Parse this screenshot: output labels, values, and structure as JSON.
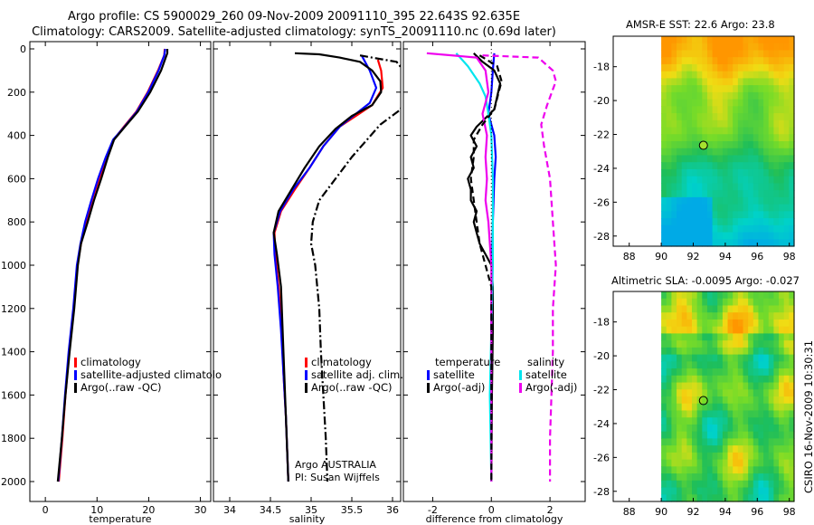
{
  "figure": {
    "title_line1": "Argo profile: CS 5900029_260 09-Nov-2009 20091110_395 22.643S 92.635E",
    "title_line2": "Climatology: CARS2009. Satellite-adjusted climatology: synTS_20091110.nc (0.69d later)",
    "stamp": "CSIRO 16-Nov-2009 10:30:31"
  },
  "colors": {
    "climatology": "#ff0000",
    "satellite": "#0000ff",
    "argo": "#000000",
    "sat_salinity": "#00e5ee",
    "argo_salinity": "#ee00ee"
  },
  "chart_data": [
    {
      "type": "line",
      "name": "temperature-profile",
      "xlabel": "temperature",
      "ylabel": "",
      "xlim": [
        -3,
        32
      ],
      "ylim": [
        2050,
        0
      ],
      "y_reversed": true,
      "xticks": [
        0,
        10,
        20,
        30
      ],
      "yticks": [
        0,
        200,
        400,
        600,
        800,
        1000,
        1200,
        1400,
        1600,
        1800,
        2000
      ],
      "legend": [
        "climatology",
        "satellite-adjusted climatolo",
        "Argo(..raw -QC)"
      ],
      "series": [
        {
          "name": "climatology",
          "color": "#ff0000",
          "dash": "solid",
          "points": [
            [
              23.1,
              0
            ],
            [
              23.0,
              30
            ],
            [
              21.8,
              100
            ],
            [
              19.8,
              200
            ],
            [
              17.6,
              290
            ],
            [
              15.2,
              360
            ],
            [
              13.2,
              420
            ],
            [
              11.9,
              500
            ],
            [
              10.4,
              600
            ],
            [
              9.0,
              700
            ],
            [
              7.9,
              800
            ],
            [
              6.9,
              900
            ],
            [
              6.2,
              1000
            ],
            [
              5.5,
              1200
            ],
            [
              4.6,
              1400
            ],
            [
              3.9,
              1600
            ],
            [
              3.3,
              1800
            ],
            [
              2.6,
              2000
            ]
          ]
        },
        {
          "name": "satellite-adjusted climatolo",
          "color": "#0000ff",
          "dash": "solid",
          "points": [
            [
              23.2,
              0
            ],
            [
              23.0,
              30
            ],
            [
              21.9,
              100
            ],
            [
              19.9,
              200
            ],
            [
              17.7,
              290
            ],
            [
              15.3,
              360
            ],
            [
              13.1,
              420
            ],
            [
              11.7,
              500
            ],
            [
              10.2,
              600
            ],
            [
              8.9,
              700
            ],
            [
              7.7,
              800
            ],
            [
              6.8,
              900
            ],
            [
              6.1,
              1000
            ],
            [
              5.4,
              1200
            ],
            [
              4.5,
              1400
            ],
            [
              3.8,
              1600
            ],
            [
              3.2,
              1800
            ],
            [
              2.5,
              2000
            ]
          ]
        },
        {
          "name": "Argo(..raw -QC)",
          "color": "#000000",
          "dash": "solid",
          "points": [
            [
              23.6,
              0
            ],
            [
              23.6,
              20
            ],
            [
              22.4,
              100
            ],
            [
              20.3,
              200
            ],
            [
              17.9,
              290
            ],
            [
              15.4,
              360
            ],
            [
              13.3,
              420
            ],
            [
              12.1,
              500
            ],
            [
              10.8,
              600
            ],
            [
              9.4,
              700
            ],
            [
              8.2,
              800
            ],
            [
              6.9,
              900
            ],
            [
              6.3,
              1000
            ],
            [
              5.6,
              1200
            ],
            [
              4.7,
              1400
            ],
            [
              3.9,
              1600
            ],
            [
              3.2,
              1800
            ],
            [
              2.4,
              2000
            ]
          ]
        }
      ]
    },
    {
      "type": "line",
      "name": "salinity-profile",
      "xlabel": "salinity",
      "ylabel": "",
      "xlim": [
        33.8,
        36.1
      ],
      "ylim": [
        2050,
        0
      ],
      "y_reversed": true,
      "xticks": [
        34,
        34.5,
        35,
        35.5,
        36
      ],
      "legend": [
        "climatology",
        "satellite adj. clim.",
        "Argo(..raw -QC)"
      ],
      "annotation_line1": "Argo AUSTRALIA",
      "annotation_line2": "PI: Susan Wijffels",
      "series": [
        {
          "name": "climatology",
          "color": "#ff0000",
          "dash": "solid",
          "points": [
            [
              35.82,
              50
            ],
            [
              35.86,
              100
            ],
            [
              35.88,
              180
            ],
            [
              35.75,
              260
            ],
            [
              35.55,
              310
            ],
            [
              35.35,
              360
            ],
            [
              35.15,
              450
            ],
            [
              34.98,
              550
            ],
            [
              34.8,
              650
            ],
            [
              34.63,
              750
            ],
            [
              34.55,
              850
            ],
            [
              34.56,
              950
            ],
            [
              34.6,
              1100
            ],
            [
              34.64,
              1300
            ],
            [
              34.66,
              1500
            ],
            [
              34.69,
              1700
            ],
            [
              34.72,
              2000
            ]
          ]
        },
        {
          "name": "satellite adj. clim.",
          "color": "#0000ff",
          "dash": "solid",
          "points": [
            [
              35.62,
              30
            ],
            [
              35.72,
              100
            ],
            [
              35.8,
              180
            ],
            [
              35.72,
              250
            ],
            [
              35.55,
              300
            ],
            [
              35.35,
              360
            ],
            [
              35.15,
              450
            ],
            [
              34.98,
              550
            ],
            [
              34.78,
              650
            ],
            [
              34.62,
              750
            ],
            [
              34.54,
              850
            ],
            [
              34.55,
              950
            ],
            [
              34.59,
              1100
            ],
            [
              34.63,
              1300
            ],
            [
              34.66,
              1500
            ],
            [
              34.69,
              1700
            ],
            [
              34.72,
              2000
            ]
          ]
        },
        {
          "name": "Argo(..raw -QC)",
          "color": "#000000",
          "dash": "solid",
          "points": [
            [
              34.8,
              20
            ],
            [
              35.1,
              25
            ],
            [
              35.35,
              40
            ],
            [
              35.6,
              60
            ],
            [
              35.75,
              100
            ],
            [
              35.85,
              150
            ],
            [
              35.86,
              200
            ],
            [
              35.75,
              260
            ],
            [
              35.5,
              310
            ],
            [
              35.3,
              370
            ],
            [
              35.1,
              450
            ],
            [
              34.92,
              550
            ],
            [
              34.76,
              650
            ],
            [
              34.6,
              750
            ],
            [
              34.54,
              850
            ],
            [
              34.58,
              950
            ],
            [
              34.63,
              1100
            ],
            [
              34.65,
              1300
            ],
            [
              34.67,
              1500
            ],
            [
              34.7,
              1800
            ],
            [
              34.72,
              2000
            ]
          ]
        },
        {
          "name": "Argo raw",
          "color": "#000000",
          "dash": "dashdot",
          "points": [
            [
              35.6,
              30
            ],
            [
              35.9,
              50
            ],
            [
              36.05,
              60
            ],
            [
              36.2,
              130
            ],
            [
              36.1,
              280
            ],
            [
              35.85,
              350
            ],
            [
              35.5,
              500
            ],
            [
              35.3,
              600
            ],
            [
              35.1,
              700
            ],
            [
              35.02,
              800
            ],
            [
              35.0,
              900
            ],
            [
              35.05,
              1000
            ],
            [
              35.1,
              1200
            ],
            [
              35.12,
              1400
            ],
            [
              35.15,
              1600
            ],
            [
              35.18,
              1800
            ],
            [
              35.2,
              2000
            ]
          ]
        }
      ]
    },
    {
      "type": "line",
      "name": "difference-profile",
      "xlabel": "difference from climatology",
      "ylabel": "",
      "xlim": [
        -3,
        3.2
      ],
      "ylim": [
        2050,
        0
      ],
      "y_reversed": true,
      "xticks": [
        -2,
        0,
        2
      ],
      "legend_left_title": "temperature",
      "legend_right_title": "salinity",
      "legend": [
        "satellite",
        "Argo(-adj)",
        "satellite",
        "Argo(-adj)"
      ],
      "series": [
        {
          "name": "temperature satellite",
          "color": "#0000ff",
          "dash": "solid",
          "points": [
            [
              0.1,
              20
            ],
            [
              0.05,
              100
            ],
            [
              0.0,
              200
            ],
            [
              -0.1,
              300
            ],
            [
              0.1,
              400
            ],
            [
              0.15,
              500
            ],
            [
              0.1,
              600
            ],
            [
              0.05,
              800
            ],
            [
              0.02,
              1000
            ],
            [
              0.0,
              1200
            ],
            [
              0.0,
              1600
            ],
            [
              0.0,
              2000
            ]
          ]
        },
        {
          "name": "temperature Argo(-adj)",
          "color": "#000000",
          "dash": "solid",
          "points": [
            [
              -0.6,
              20
            ],
            [
              -0.3,
              60
            ],
            [
              0.1,
              100
            ],
            [
              0.3,
              160
            ],
            [
              0.2,
              220
            ],
            [
              0.1,
              280
            ],
            [
              -0.2,
              320
            ],
            [
              -0.5,
              360
            ],
            [
              -0.7,
              400
            ],
            [
              -0.5,
              450
            ],
            [
              -0.7,
              500
            ],
            [
              -0.6,
              550
            ],
            [
              -0.8,
              600
            ],
            [
              -0.7,
              650
            ],
            [
              -0.7,
              700
            ],
            [
              -0.5,
              750
            ],
            [
              -0.6,
              800
            ],
            [
              -0.5,
              850
            ],
            [
              -0.4,
              900
            ],
            [
              -0.2,
              950
            ],
            [
              0.0,
              1000
            ],
            [
              0.05,
              1100
            ],
            [
              0.05,
              1300
            ],
            [
              0.02,
              1600
            ],
            [
              0.0,
              2000
            ]
          ]
        },
        {
          "name": "salinity satellite",
          "color": "#00e5ee",
          "dash": "solid",
          "points": [
            [
              -1.2,
              20
            ],
            [
              -0.8,
              80
            ],
            [
              -0.4,
              160
            ],
            [
              -0.2,
              220
            ],
            [
              -0.1,
              300
            ],
            [
              0.0,
              400
            ],
            [
              0.05,
              600
            ],
            [
              0.05,
              800
            ],
            [
              0.05,
              1000
            ],
            [
              0.0,
              1300
            ],
            [
              -0.05,
              1600
            ],
            [
              0.0,
              2000
            ]
          ]
        },
        {
          "name": "salinity Argo(-adj)",
          "color": "#ee00ee",
          "dash": "solid",
          "points": [
            [
              -2.2,
              20
            ],
            [
              -0.5,
              40
            ],
            [
              -0.2,
              100
            ],
            [
              -0.1,
              200
            ],
            [
              -0.3,
              300
            ],
            [
              -0.15,
              400
            ],
            [
              -0.2,
              500
            ],
            [
              -0.15,
              600
            ],
            [
              -0.2,
              700
            ],
            [
              -0.1,
              800
            ],
            [
              -0.05,
              900
            ],
            [
              0.0,
              1000
            ],
            [
              0.0,
              1500
            ],
            [
              0.0,
              2000
            ]
          ]
        },
        {
          "name": "temperature Argo raw",
          "color": "#000000",
          "dash": "dashed",
          "points": [
            [
              -0.4,
              30
            ],
            [
              0.2,
              80
            ],
            [
              0.35,
              150
            ],
            [
              0.25,
              200
            ],
            [
              0.1,
              280
            ],
            [
              -0.3,
              350
            ],
            [
              -0.6,
              420
            ],
            [
              -0.6,
              500
            ],
            [
              -0.7,
              600
            ],
            [
              -0.6,
              700
            ],
            [
              -0.5,
              800
            ],
            [
              -0.4,
              900
            ],
            [
              -0.2,
              1000
            ],
            [
              0.0,
              1100
            ],
            [
              0.0,
              2000
            ]
          ]
        },
        {
          "name": "salinity Argo raw",
          "color": "#ee00ee",
          "dash": "dashed",
          "points": [
            [
              -0.3,
              30
            ],
            [
              1.6,
              40
            ],
            [
              2.1,
              100
            ],
            [
              2.2,
              150
            ],
            [
              1.9,
              260
            ],
            [
              1.7,
              350
            ],
            [
              1.8,
              450
            ],
            [
              2.0,
              600
            ],
            [
              2.1,
              800
            ],
            [
              2.2,
              1000
            ],
            [
              2.1,
              1200
            ],
            [
              2.1,
              1400
            ],
            [
              2.05,
              1600
            ],
            [
              2.0,
              1800
            ],
            [
              2.0,
              2000
            ]
          ]
        }
      ]
    },
    {
      "type": "heatmap",
      "name": "sst-map",
      "title": "AMSR-E SST: 22.6 Argo: 23.8",
      "xlim": [
        87,
        98.3
      ],
      "ylim": [
        -28.6,
        -16.2
      ],
      "xticks": [
        88,
        90,
        92,
        94,
        96,
        98
      ],
      "yticks": [
        -18,
        -20,
        -22,
        -24,
        -26,
        -28
      ],
      "data_west_edge": 90,
      "marker": {
        "lon": 92.635,
        "lat": -22.643,
        "fill": "#a6e22e"
      }
    },
    {
      "type": "heatmap",
      "name": "sla-map",
      "title": "Altimetric SLA: -0.0095 Argo: -0.027",
      "xlim": [
        87,
        98.3
      ],
      "ylim": [
        -28.6,
        -16.2
      ],
      "xticks": [
        88,
        90,
        92,
        94,
        96,
        98
      ],
      "yticks": [
        -18,
        -20,
        -22,
        -24,
        -26,
        -28
      ],
      "data_west_edge": 90,
      "marker": {
        "lon": 92.635,
        "lat": -22.643,
        "fill": "none"
      }
    }
  ]
}
